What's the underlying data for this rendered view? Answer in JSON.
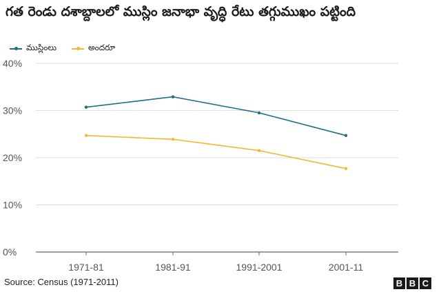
{
  "title": "గత రెండు దశాబ్దాలలో ముస్లిం జనాభా వృద్ధి రేటు తగ్గుముఖం పట్టింది",
  "legend": [
    {
      "label": "ముస్లింలు",
      "color": "#1d6f82"
    },
    {
      "label": "అందరూ",
      "color": "#f5b731"
    }
  ],
  "chart_data": {
    "type": "line",
    "title": "గత రెండు దశాబ్దాలలో ముస్లిం జనాభా వృద్ధి రేటు తగ్గుముఖం పట్టింది",
    "categories": [
      "1971-81",
      "1981-91",
      "1991-2001",
      "2001-11"
    ],
    "series": [
      {
        "name": "ముస్లింలు",
        "color": "#1d6f82",
        "values": [
          30.7,
          32.9,
          29.5,
          24.7
        ]
      },
      {
        "name": "అందరూ",
        "color": "#f5b731",
        "values": [
          24.7,
          23.9,
          21.5,
          17.7
        ]
      }
    ],
    "yticks": [
      "40%",
      "30%",
      "20%",
      "10%",
      "0%"
    ],
    "ytick_values": [
      40,
      30,
      20,
      10,
      0
    ],
    "ylim": [
      0,
      40
    ],
    "grid": true,
    "legend_position": "top-left"
  },
  "footer": {
    "source": "Source: Census (1971-2011)",
    "logo": [
      "B",
      "B",
      "C"
    ]
  }
}
